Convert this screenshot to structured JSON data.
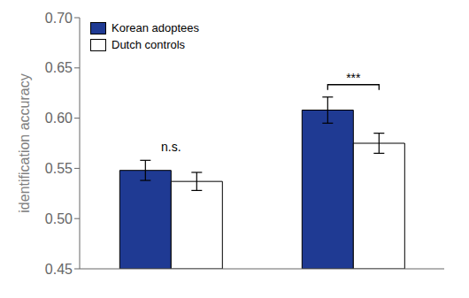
{
  "chart_data": {
    "type": "bar",
    "categories": [
      null,
      null
    ],
    "series": [
      {
        "name": "Korean adoptees",
        "color": "#1f3a93",
        "values": [
          0.548,
          0.608
        ],
        "errors": [
          0.01,
          0.013
        ]
      },
      {
        "name": "Dutch controls",
        "color": "#ffffff",
        "values": [
          0.537,
          0.575
        ],
        "errors": [
          0.009,
          0.01
        ]
      }
    ],
    "ylabel": "identification accuracy",
    "ylim": [
      0.45,
      0.7
    ],
    "yticks": [
      0.45,
      {
        "value": 0.5,
        "label": "0.50"
      },
      0.55,
      {
        "value": 0.6,
        "label": "0.60"
      },
      0.65,
      {
        "value": 0.7,
        "label": "0.70"
      }
    ],
    "legend": "upper left",
    "grid": false,
    "annotations": [
      {
        "text": "n.s.",
        "category": 0
      },
      {
        "text": "***",
        "category": 1,
        "bracket": true
      }
    ]
  }
}
